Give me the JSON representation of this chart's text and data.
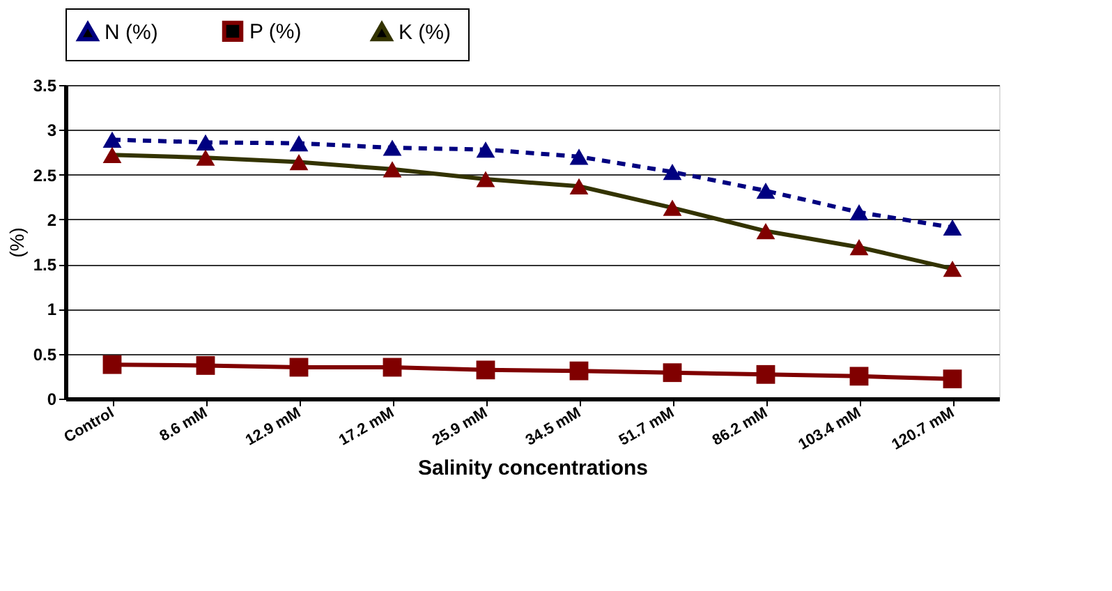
{
  "chart_data": {
    "type": "line",
    "xlabel": "Salinity concentrations",
    "ylabel": "(%)",
    "categories": [
      "Control",
      "8.6 mM",
      "12.9 mM",
      "17.2 mM",
      "25.9 mM",
      "34.5 mM",
      "51.7 mM",
      "86.2 mM",
      "103.4 mM",
      "120.7 mM"
    ],
    "series": [
      {
        "name": "N (%)",
        "color": "#000080",
        "line_style": "dashed",
        "marker": "triangle",
        "values": [
          2.89,
          2.86,
          2.85,
          2.8,
          2.78,
          2.7,
          2.53,
          2.32,
          2.08,
          1.91
        ]
      },
      {
        "name": "P  (%)",
        "color": "#800000",
        "line_style": "solid",
        "marker": "square",
        "colors": [
          "#800000",
          "#800000",
          "#800000",
          "#800000",
          "#800000",
          "#800000",
          "#800000",
          "#800000",
          "#800000",
          "#800000"
        ],
        "values": [
          0.38,
          0.37,
          0.35,
          0.35,
          0.32,
          0.31,
          0.29,
          0.27,
          0.25,
          0.22
        ]
      },
      {
        "name": "K  (%)",
        "color": "#333300",
        "line_style": "solid",
        "marker": "triangle",
        "colors": [
          "#800000",
          "#800000",
          "#800000",
          "#800000",
          "#800000",
          "#800000",
          "#800000",
          "#800000",
          "#800000",
          "#800000"
        ],
        "values": [
          2.72,
          2.69,
          2.64,
          2.56,
          2.45,
          2.37,
          2.13,
          1.87,
          1.69,
          1.45
        ]
      }
    ],
    "ylim": [
      0,
      3.5
    ],
    "yticks": [
      0,
      0.5,
      1,
      1.5,
      2,
      2.5,
      3,
      3.5
    ],
    "grid": "y",
    "legend": "top"
  }
}
